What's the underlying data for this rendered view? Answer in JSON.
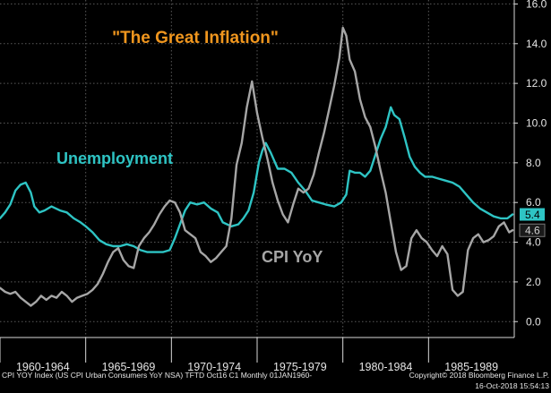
{
  "chart_data": {
    "type": "line",
    "title": "\"The Great Inflation\"",
    "xlabel": "",
    "ylabel": "",
    "xlim": [
      1960,
      1990
    ],
    "ylim": [
      -0.8,
      16.2
    ],
    "y_ticks": [
      "16.0",
      "14.0",
      "12.0",
      "10.0",
      "8.0",
      "6.0",
      "4.0",
      "2.0",
      "0.0"
    ],
    "x_categories": [
      "1960-1964",
      "1965-1969",
      "1970-1974",
      "1975-1979",
      "1980-1984",
      "1985-1989"
    ],
    "grid": true,
    "series": [
      {
        "name": "Unemployment",
        "color": "#2ec4c4",
        "last_value": "5.4",
        "x": [
          1960.0,
          1960.3,
          1960.6,
          1960.9,
          1961.2,
          1961.5,
          1961.8,
          1962.0,
          1962.3,
          1962.6,
          1963.0,
          1963.5,
          1963.9,
          1964.3,
          1964.7,
          1965.0,
          1965.4,
          1965.8,
          1966.2,
          1966.6,
          1967.0,
          1967.4,
          1967.8,
          1968.2,
          1968.6,
          1969.0,
          1969.5,
          1969.9,
          1970.2,
          1970.5,
          1970.8,
          1971.1,
          1971.5,
          1971.9,
          1972.3,
          1972.7,
          1973.0,
          1973.5,
          1973.9,
          1974.2,
          1974.5,
          1974.8,
          1975.1,
          1975.3,
          1975.5,
          1975.8,
          1976.2,
          1976.6,
          1977.0,
          1977.4,
          1977.8,
          1978.2,
          1978.6,
          1979.0,
          1979.5,
          1979.9,
          1980.2,
          1980.4,
          1980.7,
          1981.0,
          1981.3,
          1981.6,
          1981.9,
          1982.2,
          1982.5,
          1982.8,
          1983.0,
          1983.3,
          1983.6,
          1983.9,
          1984.2,
          1984.5,
          1984.8,
          1985.2,
          1985.6,
          1986.0,
          1986.4,
          1986.8,
          1987.2,
          1987.6,
          1988.0,
          1988.4,
          1988.8,
          1989.2,
          1989.6,
          1989.9
        ],
        "values": [
          5.2,
          5.5,
          5.9,
          6.6,
          6.9,
          7.0,
          6.5,
          5.8,
          5.5,
          5.6,
          5.8,
          5.6,
          5.5,
          5.2,
          5.0,
          4.8,
          4.5,
          4.1,
          3.9,
          3.8,
          3.8,
          3.9,
          3.8,
          3.6,
          3.5,
          3.5,
          3.5,
          3.6,
          4.2,
          4.9,
          5.6,
          6.0,
          5.9,
          6.0,
          5.7,
          5.5,
          5.0,
          4.8,
          4.9,
          5.2,
          5.6,
          6.5,
          8.0,
          8.6,
          9.0,
          8.5,
          7.7,
          7.7,
          7.5,
          7.0,
          6.6,
          6.1,
          6.0,
          5.9,
          5.8,
          6.0,
          6.4,
          7.6,
          7.5,
          7.5,
          7.3,
          7.6,
          8.4,
          9.2,
          9.8,
          10.8,
          10.4,
          10.2,
          9.3,
          8.3,
          7.8,
          7.5,
          7.3,
          7.3,
          7.2,
          7.1,
          7.0,
          6.8,
          6.4,
          6.0,
          5.7,
          5.5,
          5.3,
          5.2,
          5.2,
          5.4
        ]
      },
      {
        "name": "CPI YoY",
        "color": "#a6a6a6",
        "last_value": "4.6",
        "x": [
          1960.0,
          1960.3,
          1960.6,
          1960.9,
          1961.2,
          1961.5,
          1961.8,
          1962.1,
          1962.4,
          1962.7,
          1963.0,
          1963.3,
          1963.6,
          1963.9,
          1964.2,
          1964.5,
          1964.8,
          1965.1,
          1965.4,
          1965.7,
          1966.0,
          1966.3,
          1966.6,
          1966.9,
          1967.2,
          1967.5,
          1967.8,
          1968.1,
          1968.4,
          1968.7,
          1969.0,
          1969.3,
          1969.6,
          1969.9,
          1970.2,
          1970.5,
          1970.8,
          1971.1,
          1971.4,
          1971.7,
          1972.0,
          1972.3,
          1972.6,
          1972.9,
          1973.2,
          1973.5,
          1973.8,
          1974.1,
          1974.4,
          1974.7,
          1975.0,
          1975.3,
          1975.6,
          1975.9,
          1976.2,
          1976.5,
          1976.8,
          1977.1,
          1977.4,
          1977.7,
          1978.0,
          1978.3,
          1978.6,
          1978.9,
          1979.2,
          1979.5,
          1979.8,
          1980.0,
          1980.2,
          1980.4,
          1980.7,
          1981.0,
          1981.3,
          1981.6,
          1981.9,
          1982.2,
          1982.5,
          1982.8,
          1983.1,
          1983.4,
          1983.7,
          1984.0,
          1984.3,
          1984.6,
          1984.9,
          1985.2,
          1985.5,
          1985.8,
          1986.1,
          1986.4,
          1986.7,
          1987.0,
          1987.3,
          1987.6,
          1987.9,
          1988.2,
          1988.5,
          1988.8,
          1989.1,
          1989.4,
          1989.7,
          1989.9
        ],
        "values": [
          1.7,
          1.5,
          1.4,
          1.5,
          1.2,
          1.0,
          0.8,
          1.0,
          1.3,
          1.1,
          1.3,
          1.2,
          1.5,
          1.3,
          1.0,
          1.2,
          1.3,
          1.4,
          1.6,
          1.9,
          2.4,
          3.0,
          3.5,
          3.7,
          3.1,
          2.8,
          2.7,
          3.8,
          4.2,
          4.5,
          4.9,
          5.4,
          5.8,
          6.1,
          6.0,
          5.5,
          4.6,
          4.4,
          4.2,
          3.5,
          3.3,
          3.0,
          3.2,
          3.5,
          3.8,
          5.2,
          7.9,
          9.0,
          10.8,
          12.1,
          10.5,
          9.3,
          8.2,
          7.0,
          6.1,
          5.4,
          5.0,
          5.9,
          6.7,
          6.5,
          6.7,
          7.4,
          8.5,
          9.5,
          10.7,
          11.9,
          13.3,
          14.8,
          14.4,
          13.2,
          12.6,
          11.2,
          10.3,
          9.8,
          8.8,
          7.6,
          6.5,
          5.0,
          3.5,
          2.6,
          2.8,
          4.2,
          4.6,
          4.2,
          4.0,
          3.6,
          3.3,
          3.8,
          3.4,
          1.6,
          1.3,
          1.5,
          3.6,
          4.2,
          4.4,
          4.0,
          4.1,
          4.3,
          4.8,
          5.0,
          4.5,
          4.6
        ]
      }
    ],
    "annotations": [
      {
        "id": "title",
        "text": "\"The Great Inflation\"",
        "color": "#f0961e"
      },
      {
        "id": "unemployment",
        "text": "Unemployment",
        "color": "#2ec4c4"
      },
      {
        "id": "cpi",
        "text": "CPI YoY",
        "color": "#a6a6a6"
      }
    ]
  },
  "footer": {
    "source": "CPI YOY Index (US CPI Urban Consumers YoY NSA) TFTD Oct16 C1  Monthly 01JAN1960-",
    "copyright": "Copyright© 2018 Bloomberg Finance L.P.",
    "timestamp": "16-Oct-2018 15:54:13"
  }
}
